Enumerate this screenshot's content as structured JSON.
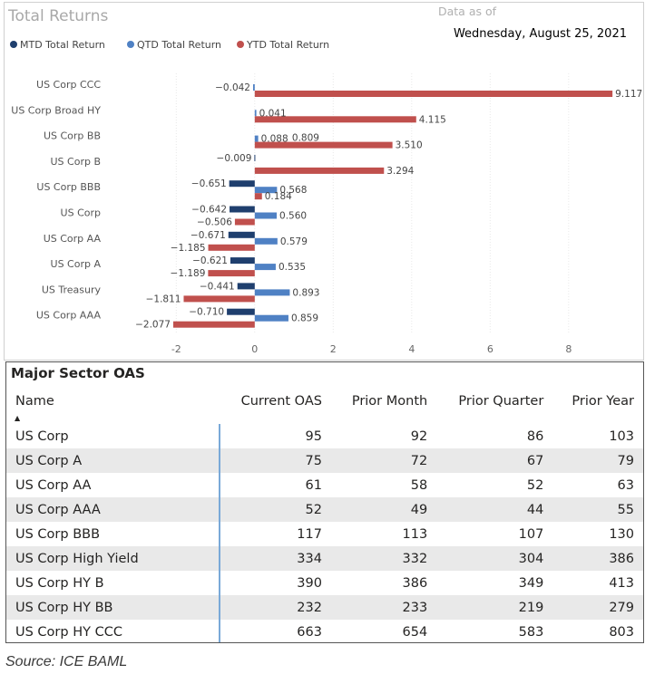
{
  "header": {
    "title": "Total Returns",
    "data_as_of_label": "Data as of",
    "date": "Wednesday, August 25, 2021"
  },
  "colors": {
    "mtd": "#1f3f6e",
    "qtd": "#4f81c4",
    "ytd": "#c0504d"
  },
  "chart_data": {
    "type": "bar",
    "orientation": "horizontal",
    "title": "Total Returns",
    "categories": [
      "US Corp CCC",
      "US Corp Broad HY",
      "US Corp BB",
      "US Corp B",
      "US Corp BBB",
      "US Corp",
      "US Corp AA",
      "US Corp A",
      "US Treasury",
      "US Corp AAA"
    ],
    "series": [
      {
        "name": "MTD Total Return",
        "values": [
          null,
          null,
          null,
          -0.009,
          -0.651,
          -0.642,
          -0.671,
          -0.621,
          -0.441,
          -0.71
        ]
      },
      {
        "name": "QTD Total Return",
        "values": [
          -0.042,
          0.041,
          0.088,
          null,
          0.568,
          0.56,
          0.579,
          0.535,
          0.893,
          0.859
        ]
      },
      {
        "name": "YTD Total Return",
        "values": [
          9.117,
          4.115,
          3.51,
          3.294,
          0.184,
          -0.506,
          -1.185,
          -1.189,
          -1.811,
          -2.077
        ]
      }
    ],
    "extra_labels": [
      {
        "category": "US Corp BB",
        "text": "0.809"
      }
    ],
    "xlim": [
      -2.4,
      9.9
    ],
    "xticks": [
      -2,
      0,
      2,
      4,
      6,
      8
    ],
    "xtick_labels": [
      "-2",
      "0",
      "2",
      "4",
      "6",
      "8"
    ],
    "grid": true,
    "legend_position": "top-left"
  },
  "table": {
    "title": "Major Sector OAS",
    "columns": [
      "Name",
      "Current OAS",
      "Prior Month",
      "Prior Quarter",
      "Prior Year"
    ],
    "sort_indicator": "▲",
    "rows": [
      [
        "US Corp",
        "95",
        "92",
        "86",
        "103"
      ],
      [
        "US Corp A",
        "75",
        "72",
        "67",
        "79"
      ],
      [
        "US Corp AA",
        "61",
        "58",
        "52",
        "63"
      ],
      [
        "US Corp AAA",
        "52",
        "49",
        "44",
        "55"
      ],
      [
        "US Corp BBB",
        "117",
        "113",
        "107",
        "130"
      ],
      [
        "US Corp High Yield",
        "334",
        "332",
        "304",
        "386"
      ],
      [
        "US Corp HY B",
        "390",
        "386",
        "349",
        "413"
      ],
      [
        "US Corp HY BB",
        "232",
        "233",
        "219",
        "279"
      ],
      [
        "US Corp HY CCC",
        "663",
        "654",
        "583",
        "803"
      ]
    ]
  },
  "footer": {
    "source": "Source: ICE BAML"
  }
}
